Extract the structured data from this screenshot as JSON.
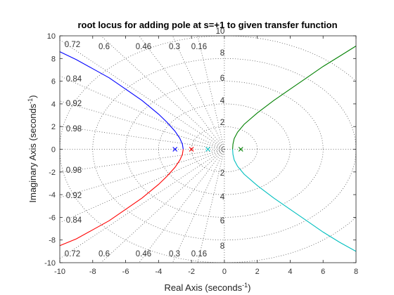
{
  "chart_data": {
    "type": "line",
    "title": "root locus for adding pole at s=+1 to given transfer function",
    "xlabel": "Real Axis (seconds",
    "xlabel_sup": "-1",
    "xlabel_end": ")",
    "ylabel": "Imaginary Axis (seconds",
    "ylabel_sup": "-1",
    "ylabel_end": ")",
    "xlim": [
      -10,
      8
    ],
    "ylim": [
      -10,
      10
    ],
    "xticks": [
      -10,
      -8,
      -6,
      -4,
      -2,
      0,
      2,
      4,
      6,
      8
    ],
    "yticks": [
      -10,
      -8,
      -6,
      -4,
      -2,
      0,
      2,
      4,
      6,
      8,
      10
    ],
    "grid": true,
    "damping_labels": [
      "0.72",
      "0.6",
      "0.46",
      "0.3",
      "0.16",
      "0.84",
      "0.92",
      "0.98"
    ],
    "natural_freq_labels": [
      "10",
      "8",
      "6",
      "4",
      "2",
      "2",
      "4",
      "6",
      "8"
    ],
    "poles": [
      -3,
      -2,
      -1,
      1
    ],
    "series": [
      {
        "color": "#0000ff",
        "x": [
          -2.5,
          -2.55,
          -2.7,
          -3.0,
          -3.5,
          -4.0,
          -5.0,
          -6.0,
          -7.0,
          -8.0,
          -9.0,
          -10.0
        ],
        "y": [
          0,
          0.45,
          0.95,
          1.6,
          2.4,
          3.1,
          4.3,
          5.3,
          6.3,
          7.1,
          7.9,
          8.6
        ]
      },
      {
        "color": "#ff0000",
        "x": [
          -2.5,
          -2.55,
          -2.7,
          -3.0,
          -3.5,
          -4.0,
          -5.0,
          -6.0,
          -7.0,
          -8.0,
          -9.0,
          -10.0
        ],
        "y": [
          0,
          -0.45,
          -0.95,
          -1.6,
          -2.4,
          -3.1,
          -4.3,
          -5.3,
          -6.3,
          -7.1,
          -7.9,
          -8.5
        ]
      },
      {
        "color": "#008000",
        "x": [
          0.5,
          0.52,
          0.6,
          0.8,
          1.2,
          2.0,
          3.0,
          4.0,
          5.0,
          6.0,
          7.0,
          8.0
        ],
        "y": [
          0,
          0.45,
          0.95,
          1.5,
          2.2,
          3.2,
          4.3,
          5.3,
          6.3,
          7.3,
          8.2,
          9.1
        ]
      },
      {
        "color": "#00bfbf",
        "x": [
          0.5,
          0.52,
          0.6,
          0.8,
          1.2,
          2.0,
          3.0,
          4.0,
          5.0,
          6.0,
          7.0,
          8.0
        ],
        "y": [
          0,
          -0.45,
          -0.95,
          -1.5,
          -2.2,
          -3.2,
          -4.3,
          -5.3,
          -6.3,
          -7.3,
          -8.2,
          -9.0
        ]
      }
    ]
  }
}
